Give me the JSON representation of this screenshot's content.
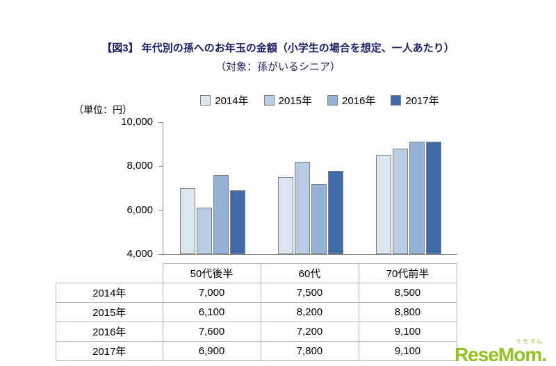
{
  "title": {
    "line1": "【図3】 年代別の孫へのお年玉の金額（小学生の場合を想定、一人あたり）",
    "line2": "（対象：孫がいるシニア）"
  },
  "unit_label": "（単位：円）",
  "chart_data": {
    "type": "bar",
    "categories": [
      "50代後半",
      "60代",
      "70代前半"
    ],
    "series": [
      {
        "name": "2014年",
        "color": "#dce6f1",
        "values": [
          7000,
          7500,
          8500
        ]
      },
      {
        "name": "2015年",
        "color": "#b8cce4",
        "values": [
          6100,
          8200,
          8800
        ]
      },
      {
        "name": "2016年",
        "color": "#95b3d7",
        "values": [
          7600,
          7200,
          9100
        ]
      },
      {
        "name": "2017年",
        "color": "#3f6ba8",
        "values": [
          6900,
          7800,
          9100
        ]
      }
    ],
    "ylim": [
      4000,
      10000
    ],
    "yticks": [
      10000,
      8000,
      6000,
      4000
    ],
    "ylabel": "（単位：円）",
    "grid": false,
    "legend_position": "top"
  },
  "table": {
    "col_headers": [
      "50代後半",
      "60代",
      "70代前半"
    ],
    "rows": [
      {
        "label": "2014年",
        "values": [
          "7,000",
          "7,500",
          "8,500"
        ]
      },
      {
        "label": "2015年",
        "values": [
          "6,100",
          "8,200",
          "8,800"
        ]
      },
      {
        "label": "2016年",
        "values": [
          "7,600",
          "7,200",
          "9,100"
        ]
      },
      {
        "label": "2017年",
        "values": [
          "6,900",
          "7,800",
          "9,100"
        ]
      }
    ]
  },
  "logo": {
    "main": "ReseMom.",
    "sub": "リセマム",
    "color": "#8fc31f"
  }
}
